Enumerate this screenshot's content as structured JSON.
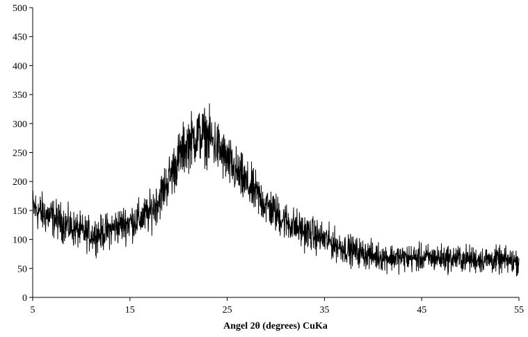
{
  "chart_data": {
    "type": "line",
    "title": "",
    "xlabel": "Angel 2θ (degrees) CuKa",
    "ylabel": "",
    "xlim": [
      5,
      55
    ],
    "ylim": [
      0,
      500
    ],
    "x_ticks": [
      5,
      15,
      25,
      35,
      45,
      55
    ],
    "y_ticks": [
      0,
      50,
      100,
      150,
      200,
      250,
      300,
      350,
      400,
      450,
      500
    ],
    "grid": false,
    "legend": "none",
    "line_color": "#000000",
    "noise_amplitude": 14,
    "series": [
      {
        "x": [
          5,
          6,
          7,
          8,
          9,
          10,
          11,
          12,
          13,
          14,
          15,
          16,
          17,
          18,
          19,
          20,
          21,
          22,
          23,
          24,
          25,
          26,
          27,
          28,
          29,
          30,
          31,
          32,
          33,
          34,
          35,
          36,
          37,
          38,
          39,
          40,
          41,
          42,
          43,
          44,
          45,
          46,
          47,
          48,
          49,
          50,
          51,
          52,
          53,
          54,
          55
        ],
        "values": [
          155,
          145,
          138,
          130,
          120,
          113,
          108,
          110,
          117,
          125,
          130,
          135,
          145,
          170,
          205,
          240,
          268,
          280,
          278,
          260,
          235,
          215,
          195,
          178,
          160,
          145,
          132,
          122,
          113,
          107,
          100,
          92,
          85,
          80,
          76,
          72,
          70,
          69,
          68,
          68,
          68,
          68,
          68,
          67,
          67,
          66,
          65,
          65,
          64,
          63,
          62
        ]
      }
    ]
  }
}
